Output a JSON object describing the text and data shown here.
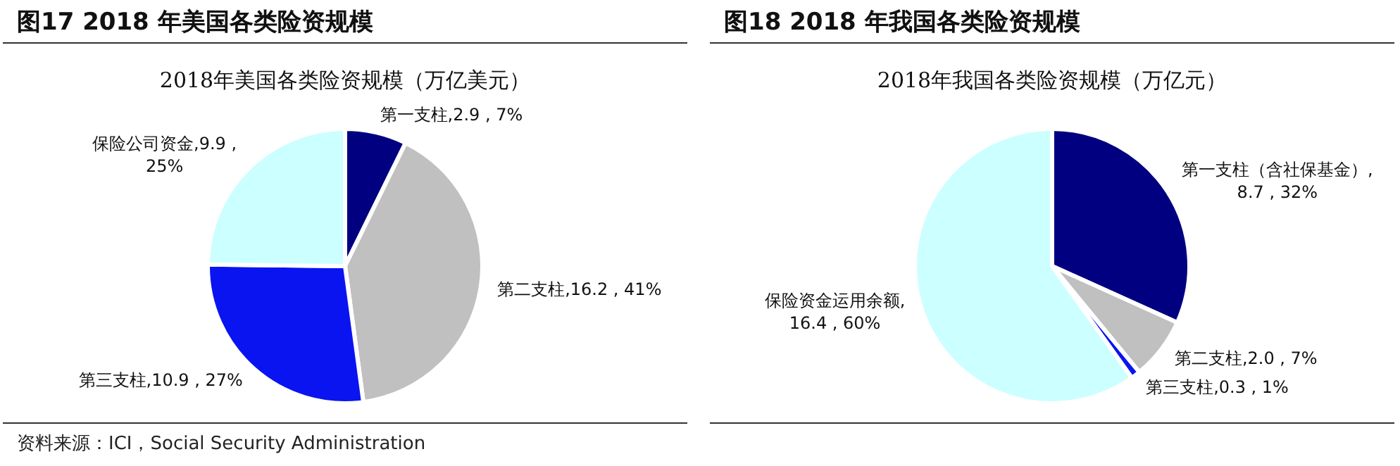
{
  "chart_data": [
    {
      "type": "pie",
      "title": "图17 2018 年美国各类险资规模",
      "subtitle": "2018年美国各类险资规模（万亿美元）",
      "categories": [
        "第一支柱",
        "第二支柱",
        "第三支柱",
        "保险公司资金"
      ],
      "values": [
        2.9,
        16.2,
        10.9,
        9.9
      ],
      "colors": [
        "#000080",
        "#c0c0c0",
        "#0a14f0",
        "#ccffff"
      ],
      "value_labels": [
        ",2.9 , 7%",
        ",16.2 , 41%",
        ",10.9 , 27%",
        ",9.9 ,\n25%"
      ],
      "annotations": [
        "资料来源：ICI，Social Security Administration"
      ]
    },
    {
      "type": "pie",
      "title": "图18 2018 年我国各类险资规模",
      "subtitle": "2018年我国各类险资规模（万亿元）",
      "categories": [
        "第一支柱（含社保基金）",
        "第二支柱",
        "第三支柱",
        "保险资金运用余额"
      ],
      "values": [
        8.7,
        2.0,
        0.3,
        16.4
      ],
      "colors": [
        "#000080",
        "#c0c0c0",
        "#0a14f0",
        "#ccffff"
      ],
      "value_labels": [
        ",\n8.7 , 32%",
        ",2.0 , 7%",
        ",0.3 , 1%",
        ",\n16.4 , 60%"
      ]
    }
  ]
}
